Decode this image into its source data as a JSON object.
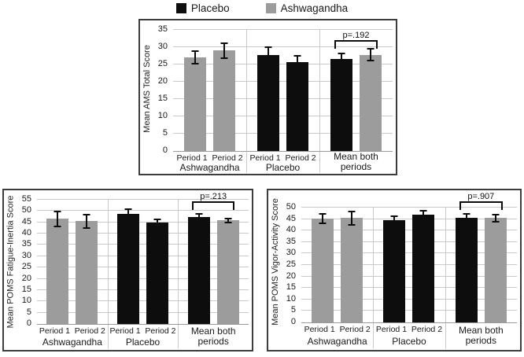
{
  "legend": {
    "position": "top",
    "items": [
      {
        "label": "Placebo",
        "color": "#0d0d0d"
      },
      {
        "label": "Ashwagandha",
        "color": "#9c9c9c"
      }
    ]
  },
  "chart_data": [
    {
      "type": "bar",
      "ylabel": "Mean AMS Total Score",
      "ylim": [
        0,
        35
      ],
      "ystep": 5,
      "grid": true,
      "group_labels": [
        "Ashwagandha",
        "Placebo",
        "Mean both periods"
      ],
      "groups": [
        {
          "name": "Ashwagandha",
          "bars": [
            {
              "label": "Period 1",
              "series": "Ashwagandha",
              "value": 27.0,
              "err": 1.8
            },
            {
              "label": "Period 2",
              "series": "Ashwagandha",
              "value": 29.0,
              "err": 2.1
            }
          ]
        },
        {
          "name": "Placebo",
          "bars": [
            {
              "label": "Period 1",
              "series": "Placebo",
              "value": 27.8,
              "err": 2.2
            },
            {
              "label": "Period 2",
              "series": "Placebo",
              "value": 25.6,
              "err": 1.8
            }
          ]
        },
        {
          "name": "Mean both periods",
          "bars": [
            {
              "series": "Placebo",
              "value": 26.5,
              "err": 1.6
            },
            {
              "series": "Ashwagandha",
              "value": 27.8,
              "err": 1.7
            }
          ]
        }
      ],
      "p_annotation": {
        "text": "p=.192",
        "y": 29.5
      }
    },
    {
      "type": "bar",
      "ylabel": "Mean POMS Fatigue-Inertia Score",
      "ylim": [
        0,
        55
      ],
      "ystep": 5,
      "grid": true,
      "group_labels": [
        "Ashwagandha",
        "Placebo",
        "Mean both periods"
      ],
      "groups": [
        {
          "name": "Ashwagandha",
          "bars": [
            {
              "label": "Period 1",
              "series": "Ashwagandha",
              "value": 46.5,
              "err": 3.3
            },
            {
              "label": "Period 2",
              "series": "Ashwagandha",
              "value": 45.5,
              "err": 3.0
            }
          ]
        },
        {
          "name": "Placebo",
          "bars": [
            {
              "label": "Period 1",
              "series": "Placebo",
              "value": 48.8,
              "err": 2.2
            },
            {
              "label": "Period 2",
              "series": "Placebo",
              "value": 44.8,
              "err": 1.6
            }
          ]
        },
        {
          "name": "Mean both periods",
          "bars": [
            {
              "series": "Placebo",
              "value": 47.3,
              "err": 1.5
            },
            {
              "series": "Ashwagandha",
              "value": 45.8,
              "err": 1.0
            }
          ]
        }
      ],
      "p_annotation": {
        "text": "p=.213",
        "y": 50.5
      }
    },
    {
      "type": "bar",
      "ylabel": "Mean POMS Vigor-Activity Score",
      "ylim": [
        0,
        50
      ],
      "ystep": 5,
      "grid": true,
      "group_labels": [
        "Ashwagandha",
        "Placebo",
        "Mean both periods"
      ],
      "groups": [
        {
          "name": "Ashwagandha",
          "bars": [
            {
              "label": "Period 1",
              "series": "Ashwagandha",
              "value": 45.2,
              "err": 2.2
            },
            {
              "label": "Period 2",
              "series": "Ashwagandha",
              "value": 45.5,
              "err": 2.9
            }
          ]
        },
        {
          "name": "Placebo",
          "bars": [
            {
              "label": "Period 1",
              "series": "Placebo",
              "value": 44.5,
              "err": 1.7
            },
            {
              "label": "Period 2",
              "series": "Placebo",
              "value": 46.8,
              "err": 1.9
            }
          ]
        },
        {
          "name": "Mean both periods",
          "bars": [
            {
              "series": "Placebo",
              "value": 45.4,
              "err": 1.7
            },
            {
              "series": "Ashwagandha",
              "value": 45.4,
              "err": 1.5
            }
          ]
        }
      ],
      "p_annotation": {
        "text": "p=.907",
        "y": 49.0
      }
    }
  ]
}
